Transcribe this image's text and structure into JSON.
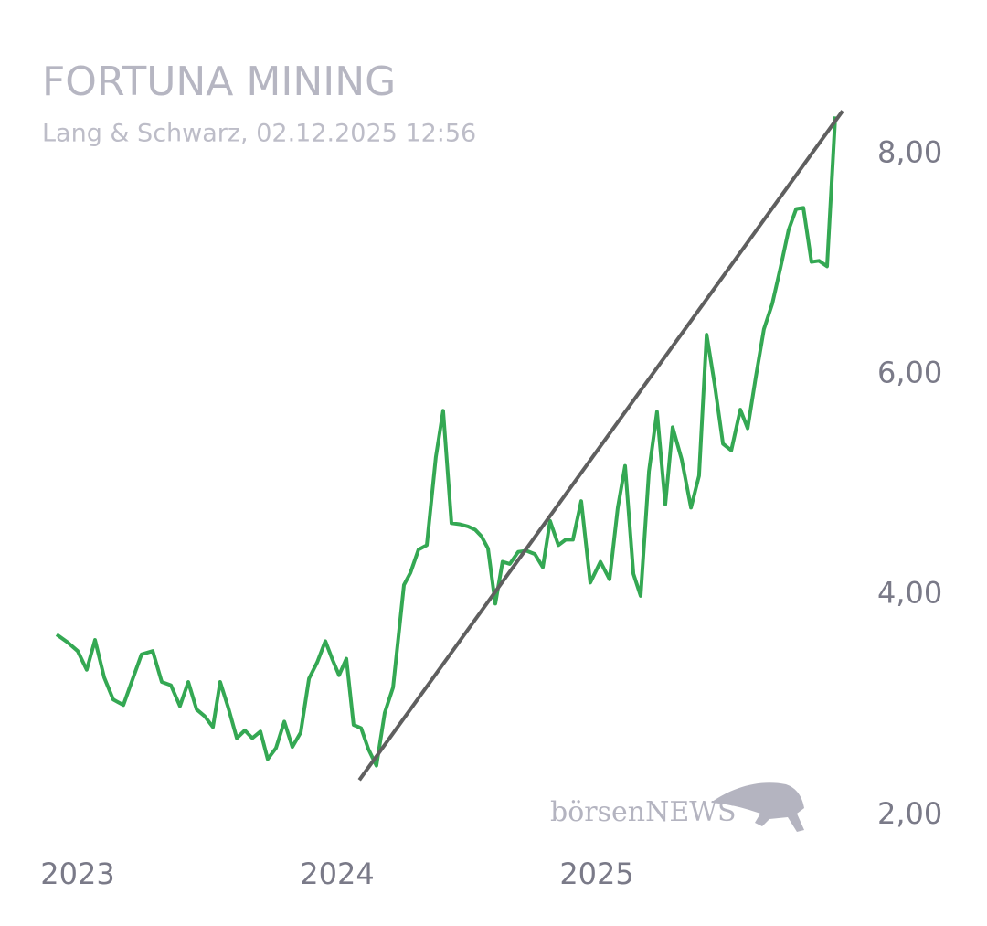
{
  "chart_data": {
    "type": "line",
    "title": "FORTUNA MINING",
    "subtitle": "Lang & Schwarz, 02.12.2025 12:56",
    "watermark": "börsenNEWS",
    "x": [
      2022.919,
      2022.961,
      2023.0,
      2023.035,
      2023.067,
      2023.102,
      2023.137,
      2023.176,
      2023.211,
      2023.246,
      2023.289,
      2023.324,
      2023.359,
      2023.394,
      2023.426,
      2023.458,
      2023.489,
      2023.521,
      2023.549,
      2023.581,
      2023.613,
      2023.644,
      2023.673,
      2023.704,
      2023.732,
      2023.764,
      2023.796,
      2023.827,
      2023.859,
      2023.891,
      2023.923,
      2023.954,
      2023.982,
      2024.007,
      2024.035,
      2024.063,
      2024.092,
      2024.12,
      2024.151,
      2024.183,
      2024.215,
      2024.257,
      2024.282,
      2024.313,
      2024.345,
      2024.38,
      2024.408,
      2024.44,
      2024.472,
      2024.504,
      2024.532,
      2024.556,
      2024.581,
      2024.609,
      2024.637,
      2024.665,
      2024.697,
      2024.729,
      2024.761,
      2024.792,
      2024.82,
      2024.852,
      2024.88,
      2024.908,
      2024.94,
      2024.975,
      2025.014,
      2025.049,
      2025.081,
      2025.109,
      2025.141,
      2025.169,
      2025.201,
      2025.232,
      2025.264,
      2025.292,
      2025.327,
      2025.363,
      2025.394,
      2025.423,
      2025.454,
      2025.486,
      2025.518,
      2025.553,
      2025.581,
      2025.613,
      2025.644,
      2025.676,
      2025.708,
      2025.739,
      2025.768,
      2025.796,
      2025.827,
      2025.856,
      2025.887,
      2025.919
    ],
    "series": [
      {
        "color": "#34a853",
        "values": [
          3.64,
          3.57,
          3.49,
          3.32,
          3.59,
          3.25,
          3.05,
          3.0,
          3.23,
          3.46,
          3.49,
          3.21,
          3.18,
          2.99,
          3.21,
          2.96,
          2.9,
          2.8,
          3.21,
          2.97,
          2.7,
          2.77,
          2.7,
          2.76,
          2.51,
          2.61,
          2.85,
          2.62,
          2.75,
          3.24,
          3.39,
          3.58,
          3.41,
          3.27,
          3.42,
          2.82,
          2.79,
          2.6,
          2.45,
          2.93,
          3.16,
          4.09,
          4.2,
          4.41,
          4.45,
          5.25,
          5.67,
          4.65,
          4.64,
          4.62,
          4.59,
          4.53,
          4.42,
          3.92,
          4.3,
          4.28,
          4.39,
          4.4,
          4.37,
          4.25,
          4.67,
          4.45,
          4.5,
          4.5,
          4.85,
          4.11,
          4.3,
          4.14,
          4.79,
          5.17,
          4.19,
          3.99,
          5.12,
          5.66,
          4.82,
          5.52,
          5.23,
          4.79,
          5.08,
          6.36,
          5.91,
          5.37,
          5.31,
          5.68,
          5.51,
          5.98,
          6.41,
          6.64,
          6.97,
          7.31,
          7.5,
          7.51,
          7.02,
          7.03,
          6.98,
          8.34
        ]
      }
    ],
    "trend": {
      "color": "#5f5f5f",
      "x": [
        2024.085,
        2025.947
      ],
      "values": [
        2.32,
        8.39
      ]
    },
    "xlim": [
      2022.919,
      2025.947
    ],
    "xticks": [
      2023,
      2024,
      2025
    ],
    "ylim": [
      1.8,
      8.6
    ],
    "yticks": [
      {
        "value": 2,
        "label": "2,00"
      },
      {
        "value": 4,
        "label": "4,00"
      },
      {
        "value": 6,
        "label": "6,00"
      },
      {
        "value": 8,
        "label": "8,00"
      }
    ],
    "grid": false
  }
}
